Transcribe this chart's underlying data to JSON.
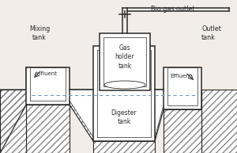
{
  "bg_color": "#f2ede8",
  "line_color": "#2a2a2a",
  "hatch_color": "#888888",
  "dashed_color": "#7799bb",
  "labels": {
    "mixing_tank": "Mixing\ntank",
    "gas_holder": "Gas\nholder\ntank",
    "digester": "Digester\ntank",
    "outlet_tank": "Outlet\ntank",
    "biogas": "Bio gas outlet",
    "influent": "Influent",
    "effluent": "Effluent"
  },
  "figsize": [
    3.0,
    1.93
  ],
  "dpi": 100
}
